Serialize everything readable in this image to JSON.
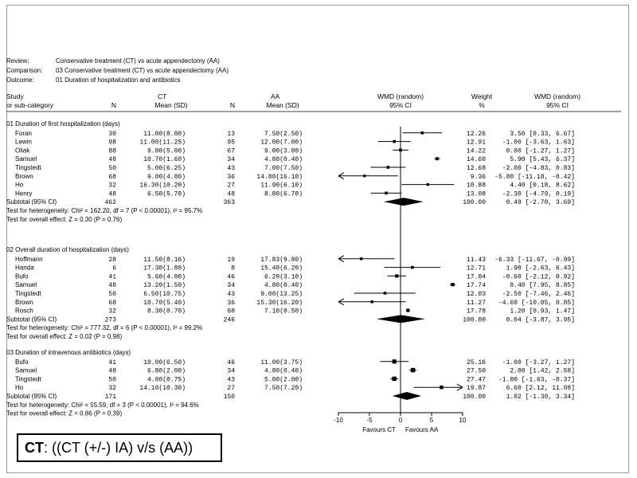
{
  "chart_data": {
    "type": "forest",
    "header": {
      "review_label": "Review:",
      "review_value": "Conservative treatment (CT) vs acute appendectomy (AA)",
      "comparison_label": "Comparison:",
      "comparison_value": "03 Conservative treatment (CT) vs acute appendectomy (AA)",
      "outcome_label": "Outcome:",
      "outcome_value": "01 Duration of hospitalization and antibiotics"
    },
    "columns": {
      "study": "Study",
      "subcat": "or sub-category",
      "ct": "CT",
      "n": "N",
      "mean_sd": "Mean (SD)",
      "aa": "AA",
      "wmd_random": "WMD (random)",
      "ci95": "95% CI",
      "weight": "Weight",
      "percent": "%"
    },
    "groups": [
      {
        "title": "01 Duration of first hospitalization (days)",
        "studies": [
          {
            "name": "Foran",
            "ct_n": "30",
            "ct_ms": "11.00(8.00)",
            "aa_n": "13",
            "aa_ms": "7.50(2.50)",
            "weight": "12.26",
            "wmd_text": "3.50 [0.33, 6.67]",
            "est": 3.5,
            "lo": 0.33,
            "hi": 6.67
          },
          {
            "name": "Lewin",
            "ct_n": "98",
            "ct_ms": "11.00(11.25)",
            "aa_n": "95",
            "aa_ms": "12.00(7.00)",
            "weight": "12.91",
            "wmd_text": "-1.00 [-3.63, 1.63]",
            "est": -1.0,
            "lo": -3.63,
            "hi": 1.63
          },
          {
            "name": "Oliak",
            "ct_n": "88",
            "ct_ms": "9.00(5.00)",
            "aa_n": "67",
            "aa_ms": "9.00(3.00)",
            "weight": "14.22",
            "wmd_text": "0.00 [-1.27, 1.27]",
            "est": 0.0,
            "lo": -1.27,
            "hi": 1.27
          },
          {
            "name": "Samuel",
            "ct_n": "48",
            "ct_ms": "10.70(1.60)",
            "aa_n": "34",
            "aa_ms": "4.80(0.40)",
            "weight": "14.60",
            "wmd_text": "5.90 [5.43, 6.37]",
            "est": 5.9,
            "lo": 5.43,
            "hi": 6.37
          },
          {
            "name": "Tingstedt",
            "ct_n": "50",
            "ct_ms": "5.00(6.25)",
            "aa_n": "43",
            "aa_ms": "7.00(7.50)",
            "weight": "12.68",
            "wmd_text": "-2.00 [-4.83, 0.83]",
            "est": -2.0,
            "lo": -4.83,
            "hi": 0.83
          },
          {
            "name": "Brown",
            "ct_n": "68",
            "ct_ms": "9.00(4.80)",
            "aa_n": "36",
            "aa_ms": "14.80(16.10)",
            "weight": "9.36",
            "wmd_text": "-5.80 [-11.18, -0.42]",
            "est": -5.8,
            "lo": -11.18,
            "hi": -0.42
          },
          {
            "name": "Ho",
            "ct_n": "32",
            "ct_ms": "16.30(10.20)",
            "aa_n": "27",
            "aa_ms": "11.90(6.10)",
            "weight": "10.88",
            "wmd_text": "4.40 [0.18, 8.62]",
            "est": 4.4,
            "lo": 0.18,
            "hi": 8.62
          },
          {
            "name": "Henry",
            "ct_n": "48",
            "ct_ms": "6.50(5.70)",
            "aa_n": "48",
            "aa_ms": "8.80(6.70)",
            "weight": "13.08",
            "wmd_text": "-2.30 [-4.79, 0.19]",
            "est": -2.3,
            "lo": -4.79,
            "hi": 0.19
          }
        ],
        "subtotal": {
          "label": "Subtotal (95% CI)",
          "ct_n": "462",
          "aa_n": "363",
          "weight": "100.00",
          "wmd_text": "0.49 [-2.70, 3.69]",
          "est": 0.49,
          "lo": -2.7,
          "hi": 3.69
        },
        "heterogeneity": "Test for heterogeneity: Chi² = 162.20, df = 7 (P < 0.00001), I² = 95.7%",
        "overall": "Test for overall effect: Z = 0.30 (P = 0.76)"
      },
      {
        "title": "02 Overall duration of hospitalization (days)",
        "studies": [
          {
            "name": "Hoffmann",
            "ct_n": "28",
            "ct_ms": "11.50(8.16)",
            "aa_n": "19",
            "aa_ms": "17.83(9.80)",
            "weight": "11.43",
            "wmd_text": "-6.33 [-11.67, -0.99]",
            "est": -6.33,
            "lo": -11.67,
            "hi": -0.99
          },
          {
            "name": "Handa",
            "ct_n": "6",
            "ct_ms": "17.30(1.80)",
            "aa_n": "8",
            "aa_ms": "15.40(6.20)",
            "weight": "12.71",
            "wmd_text": "1.90 [-2.63, 6.43]",
            "est": 1.9,
            "lo": -2.63,
            "hi": 6.43
          },
          {
            "name": "Bufo",
            "ct_n": "41",
            "ct_ms": "5.60(4.00)",
            "aa_n": "46",
            "aa_ms": "6.20(3.10)",
            "weight": "17.04",
            "wmd_text": "-0.60 [-2.12, 0.92]",
            "est": -0.6,
            "lo": -2.12,
            "hi": 0.92
          },
          {
            "name": "Samuel",
            "ct_n": "48",
            "ct_ms": "13.20(1.50)",
            "aa_n": "34",
            "aa_ms": "4.80(0.40)",
            "weight": "17.74",
            "wmd_text": "8.40 [7.95, 8.85]",
            "est": 8.4,
            "lo": 7.95,
            "hi": 8.85
          },
          {
            "name": "Tingstedt",
            "ct_n": "50",
            "ct_ms": "6.50(10.75)",
            "aa_n": "43",
            "aa_ms": "9.00(13.25)",
            "weight": "12.03",
            "wmd_text": "-2.50 [-7.46, 2.46]",
            "est": -2.5,
            "lo": -7.46,
            "hi": 2.46
          },
          {
            "name": "Brown",
            "ct_n": "68",
            "ct_ms": "10.70(5.40)",
            "aa_n": "36",
            "aa_ms": "15.30(16.20)",
            "weight": "11.27",
            "wmd_text": "-4.60 [-10.05, 0.85]",
            "est": -4.6,
            "lo": -10.05,
            "hi": 0.85
          },
          {
            "name": "Rosch",
            "ct_n": "32",
            "ct_ms": "8.30(0.70)",
            "aa_n": "60",
            "aa_ms": "7.10(0.50)",
            "weight": "17.78",
            "wmd_text": "1.20 [0.93, 1.47]",
            "est": 1.2,
            "lo": 0.93,
            "hi": 1.47
          }
        ],
        "subtotal": {
          "label": "Subtotal (95% CI)",
          "ct_n": "273",
          "aa_n": "246",
          "weight": "100.00",
          "wmd_text": "0.04 [-3.87, 3.95]",
          "est": 0.04,
          "lo": -3.87,
          "hi": 3.95
        },
        "heterogeneity": "Test for heterogeneity: Chi² = 777.32, df = 6 (P < 0.00001), I² = 99.2%",
        "overall": "Test for overall effect: Z = 0.02 (P = 0.98)"
      },
      {
        "title": "03 Duration of intravenous antibiotics (days)",
        "studies": [
          {
            "name": "Bufo",
            "ct_n": "41",
            "ct_ms": "10.00(6.50)",
            "aa_n": "46",
            "aa_ms": "11.00(3.75)",
            "weight": "25.16",
            "wmd_text": "-1.00 [-3.27, 1.27]",
            "est": -1.0,
            "lo": -3.27,
            "hi": 1.27
          },
          {
            "name": "Samuel",
            "ct_n": "48",
            "ct_ms": "6.80(2.00)",
            "aa_n": "34",
            "aa_ms": "4.80(0.40)",
            "weight": "27.50",
            "wmd_text": "2.00 [1.42, 2.58]",
            "est": 2.0,
            "lo": 1.42,
            "hi": 2.58
          },
          {
            "name": "Tingstedt",
            "ct_n": "50",
            "ct_ms": "4.00(0.75)",
            "aa_n": "43",
            "aa_ms": "5.00(2.00)",
            "weight": "27.47",
            "wmd_text": "-1.00 [-1.63, -0.37]",
            "est": -1.0,
            "lo": -1.63,
            "hi": -0.37
          },
          {
            "name": "Ho",
            "ct_n": "32",
            "ct_ms": "14.10(10.30)",
            "aa_n": "27",
            "aa_ms": "7.50(7.20)",
            "weight": "19.87",
            "wmd_text": "6.60 [2.12, 11.08]",
            "est": 6.6,
            "lo": 2.12,
            "hi": 11.08
          }
        ],
        "subtotal": {
          "label": "Subtotal (95% CI)",
          "ct_n": "171",
          "aa_n": "150",
          "weight": "100.00",
          "wmd_text": "1.02 [-1.30, 3.34]",
          "est": 1.02,
          "lo": -1.3,
          "hi": 3.34
        },
        "heterogeneity": "Test for heterogeneity: Chi² = 55.59, df = 3 (P < 0.00001), I² = 94.6%",
        "overall": "Test for overall effect: Z = 0.86 (P = 0.39)"
      }
    ],
    "x_axis": {
      "ticks": [
        -10,
        -5,
        0,
        5,
        10
      ],
      "tick_labels": [
        "-10",
        "-5",
        "0",
        "5",
        "10"
      ],
      "xlim": [
        -10,
        10
      ],
      "left_label": "Favours CT",
      "right_label": "Favours AA"
    }
  },
  "legend_box": {
    "abbr": "CT",
    "text": ": ((CT (+/-) IA)  v/s (AA))"
  }
}
